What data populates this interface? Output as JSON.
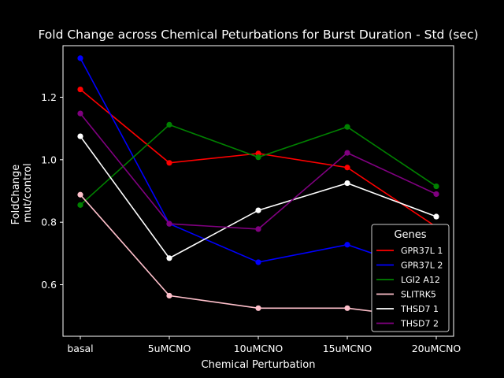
{
  "chart_data": {
    "type": "line",
    "title": "Fold Change across Chemical Peturbations for Burst Duration - Std (sec)",
    "xlabel": "Chemical Perturbation",
    "ylabel_lines": [
      "FoldChange",
      "mut/control"
    ],
    "categories": [
      "basal",
      "5uMCNO",
      "10uMCNO",
      "15uMCNO",
      "20uMCNO"
    ],
    "ylim": [
      0.435,
      1.365
    ],
    "yticks": [
      0.6,
      0.8,
      1.0,
      1.2
    ],
    "ytick_labels": [
      "0.6",
      "0.8",
      "1.0",
      "1.2"
    ],
    "grid": false,
    "legend": {
      "title": "Genes",
      "placement": "lower-right"
    },
    "series": [
      {
        "name": "GPR37L 1",
        "color": "#ff0000",
        "values": [
          1.225,
          0.99,
          1.02,
          0.975,
          0.785
        ]
      },
      {
        "name": "GPR37L 2",
        "color": "#0000ff",
        "values": [
          1.325,
          0.795,
          0.672,
          0.728,
          0.63
        ]
      },
      {
        "name": "LGI2 A12",
        "color": "#008000",
        "values": [
          0.855,
          1.112,
          1.008,
          1.105,
          0.915
        ]
      },
      {
        "name": "SLITRK5",
        "color": "#ffc0cb",
        "values": [
          0.888,
          0.565,
          0.525,
          0.525,
          0.49
        ]
      },
      {
        "name": "THSD7 1",
        "color": "#ffffff",
        "values": [
          1.075,
          0.685,
          0.838,
          0.925,
          0.818
        ]
      },
      {
        "name": "THSD7 2",
        "color": "#800080",
        "values": [
          1.148,
          0.795,
          0.778,
          1.022,
          0.89
        ]
      }
    ]
  }
}
